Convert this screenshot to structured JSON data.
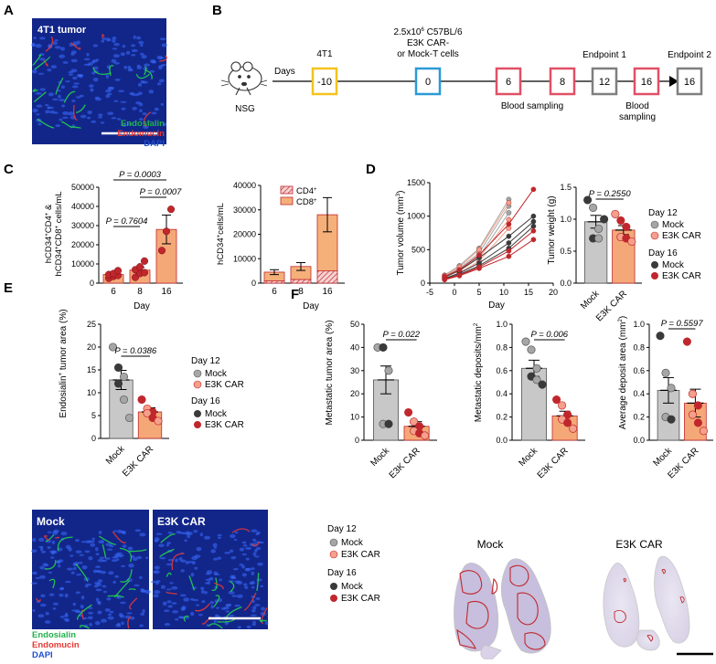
{
  "panel_labels": [
    "A",
    "B",
    "C",
    "D",
    "E",
    "F"
  ],
  "colors": {
    "mock_d12": "#a6a6a6",
    "e3k_d12": "#f4a08a",
    "mock_d16": "#3a3a3a",
    "e3k_d16": "#c0272d",
    "bar_mock": "#c8c8c8",
    "bar_e3k": "#f5a877",
    "bar_mock_line": "#555555",
    "bar_e3k_line": "#c0272d",
    "cd4_fill": "#f7d3d3",
    "cd4_hatch": "#c0272d",
    "cd8_fill": "#f5b07a",
    "box_neg10": "#f4c31e",
    "box_0": "#2b9ad4",
    "box_blood": "#e05066",
    "box_end": "#7f7f7f",
    "endosialin": "#22b14c",
    "endomucin": "#e53935",
    "dapi": "#1f4fd1"
  },
  "a": {
    "title": "4T1 tumor",
    "legend": [
      "Endosialin",
      "Endomucin",
      "DAPI"
    ]
  },
  "b": {
    "mouse_label": "NSG",
    "days_label": "Days",
    "cells_line1": "2.5x10",
    "cells_sup": "6",
    "cells_line1b": " C57BL/6",
    "cells_line2": "E3K CAR-",
    "cells_line3": "or Mock-T cells",
    "tumor_label": "4T1",
    "days": [
      "-10",
      "0",
      "6",
      "8",
      "12",
      "16",
      "16"
    ],
    "blood_sampling_1": "Blood sampling",
    "blood_sampling_2a": "Blood",
    "blood_sampling_2b": "sampling",
    "endpoint1": "Endpoint 1",
    "endpoint2": "Endpoint 2"
  },
  "c1": {
    "ylabel_1": "hCD34",
    "ylabel_2": "CD4",
    "ylabel_3": " &",
    "ylabel_4": "hCD34",
    "ylabel_5": "CD8",
    "ylabel_6": " cells/mL",
    "sup_plus": "+",
    "xlabel": "Day",
    "yticks": [
      "0",
      "10000",
      "20000",
      "30000",
      "40000",
      "50000"
    ],
    "p_values": [
      "P = 0.0003",
      "P = 0.0007",
      "P = 0.7604"
    ]
  },
  "c2": {
    "ylabel_1": "hCD34",
    "ylabel_2": "cells/mL",
    "sup_plus": "+",
    "xlabel": "Day",
    "yticks": [
      "0",
      "10000",
      "20000",
      "30000",
      "40000"
    ],
    "legend_cd4": "CD4",
    "legend_cd8": "CD8"
  },
  "d1": {
    "ylabel_1": "Tumor volume (mm",
    "ylabel_sup": "3",
    "ylabel_2": ")",
    "xlabel": "Day",
    "yticks": [
      "0",
      "500",
      "1000",
      "1500"
    ],
    "xticks": [
      "-5",
      "0",
      "5",
      "10",
      "15",
      "20"
    ]
  },
  "d2": {
    "ylabel": "Tumor weight (g)",
    "yticks": [
      "0.0",
      "0.5",
      "1.0",
      "1.5"
    ],
    "p_value": "P = 0.2550",
    "categories": [
      "Mock",
      "E3K CAR"
    ]
  },
  "legend": {
    "day12": "Day 12",
    "day16": "Day 16",
    "mock": "Mock",
    "e3k": "E3K CAR"
  },
  "e": {
    "ylabel_1": "Endosialin",
    "ylabel_sup": "+",
    "ylabel_2": " tumor area (%)",
    "yticks": [
      "0",
      "5",
      "10",
      "15",
      "20",
      "25"
    ],
    "p_value": "P = 0.0386",
    "categories": [
      "Mock",
      "E3K CAR"
    ],
    "img_labels": [
      "Mock",
      "E3K CAR"
    ],
    "legend": [
      "Endosialin",
      "Endomucin",
      "DAPI"
    ]
  },
  "f1": {
    "ylabel": "Metastatic tumor area (%)",
    "yticks": [
      "0",
      "10",
      "20",
      "30",
      "40",
      "50"
    ],
    "p_value": "P = 0.022",
    "categories": [
      "Mock",
      "E3K CAR"
    ]
  },
  "f2": {
    "ylabel_1": "Metastatic deposits/mm",
    "ylabel_sup": "2",
    "yticks": [
      "0.0",
      "0.2",
      "0.4",
      "0.6",
      "0.8",
      "1.0"
    ],
    "p_value": "P = 0.006",
    "categories": [
      "Mock",
      "E3K CAR"
    ]
  },
  "f3": {
    "ylabel_1": "Average deposit area (mm",
    "ylabel_sup": "2",
    "ylabel_2": ")",
    "yticks": [
      "0.0",
      "0.2",
      "0.4",
      "0.6",
      "0.8",
      "1.0"
    ],
    "p_value": "P = 0.5597",
    "categories": [
      "Mock",
      "E3K CAR"
    ]
  },
  "f_lungs": {
    "labels": [
      "Mock",
      "E3K CAR"
    ]
  },
  "chart_data": [
    {
      "id": "C-left",
      "type": "bar",
      "categories": [
        "6",
        "8",
        "16"
      ],
      "values": [
        4500,
        6800,
        28000
      ],
      "errors": [
        800,
        1500,
        7500
      ],
      "points": [
        [
          2500,
          3500,
          4000,
          4500,
          5000,
          6500
        ],
        [
          3000,
          5000,
          5500,
          7000,
          8500,
          11500
        ],
        [
          17000,
          27000,
          38500
        ]
      ],
      "ylim": [
        0,
        50000
      ],
      "xlabel": "Day",
      "p_values": [
        {
          "from": "6",
          "to": "16",
          "p": "P = 0.0003"
        },
        {
          "from": "8",
          "to": "16",
          "p": "P = 0.0007"
        },
        {
          "from": "6",
          "to": "8",
          "p": "P = 0.7604"
        }
      ]
    },
    {
      "id": "C-right",
      "type": "bar",
      "categories": [
        "6",
        "8",
        "16"
      ],
      "series": [
        {
          "name": "CD4",
          "values": [
            900,
            1500,
            5000
          ]
        },
        {
          "name": "CD8",
          "values": [
            3600,
            5300,
            23000
          ]
        }
      ],
      "errors_total": [
        1000,
        1600,
        7000
      ],
      "ylim": [
        0,
        40000
      ],
      "xlabel": "Day"
    },
    {
      "id": "D-left",
      "type": "line",
      "xlim": [
        -5,
        20
      ],
      "ylim": [
        0,
        1500
      ],
      "xlabel": "Day",
      "series": [
        {
          "group": "Mock Day 12",
          "x": [
            -2,
            1,
            5,
            11
          ],
          "y": [
            120,
            260,
            520,
            1250
          ]
        },
        {
          "group": "Mock Day 12",
          "x": [
            -2,
            1,
            5,
            11
          ],
          "y": [
            100,
            220,
            450,
            1150
          ]
        },
        {
          "group": "Mock Day 12",
          "x": [
            -2,
            1,
            5,
            11
          ],
          "y": [
            80,
            200,
            400,
            1050
          ]
        },
        {
          "group": "E3K CAR Day 12",
          "x": [
            -2,
            1,
            5,
            11
          ],
          "y": [
            110,
            240,
            500,
            1200
          ]
        },
        {
          "group": "E3K CAR Day 12",
          "x": [
            -2,
            1,
            5,
            11
          ],
          "y": [
            90,
            180,
            380,
            950
          ]
        },
        {
          "group": "E3K CAR Day 12",
          "x": [
            -2,
            1,
            5,
            11
          ],
          "y": [
            70,
            150,
            330,
            820
          ]
        },
        {
          "group": "Mock Day 16",
          "x": [
            -2,
            1,
            5,
            11,
            16
          ],
          "y": [
            90,
            190,
            380,
            700,
            1000
          ]
        },
        {
          "group": "Mock Day 16",
          "x": [
            -2,
            1,
            5,
            11,
            16
          ],
          "y": [
            70,
            150,
            300,
            600,
            920
          ]
        },
        {
          "group": "Mock Day 16",
          "x": [
            -2,
            1,
            5,
            11,
            16
          ],
          "y": [
            60,
            130,
            260,
            520,
            850
          ]
        },
        {
          "group": "E3K CAR Day 16",
          "x": [
            -2,
            1,
            5,
            11,
            16
          ],
          "y": [
            100,
            200,
            420,
            880,
            1400
          ]
        },
        {
          "group": "E3K CAR Day 16",
          "x": [
            -2,
            1,
            5,
            11,
            16
          ],
          "y": [
            60,
            120,
            240,
            480,
            780
          ]
        },
        {
          "group": "E3K CAR Day 16",
          "x": [
            -2,
            1,
            5,
            11,
            16
          ],
          "y": [
            50,
            110,
            220,
            400,
            650
          ]
        }
      ]
    },
    {
      "id": "D-right",
      "type": "bar",
      "categories": [
        "Mock",
        "E3K CAR"
      ],
      "values": [
        0.96,
        0.83
      ],
      "errors": [
        0.1,
        0.07
      ],
      "points": [
        [
          1.3,
          1.18,
          0.85,
          0.7,
          0.7,
          1.0
        ],
        [
          1.08,
          0.98,
          0.88,
          0.72,
          0.7,
          0.65
        ]
      ],
      "point_groups": [
        [
          "d16",
          "d12",
          "d12",
          "d16",
          "d12",
          "d16"
        ],
        [
          "d12",
          "d16",
          "d16",
          "d12",
          "d16",
          "d12"
        ]
      ],
      "ylim": [
        0,
        1.5
      ],
      "p_value": "P = 0.2550"
    },
    {
      "id": "E",
      "type": "bar",
      "categories": [
        "Mock",
        "E3K CAR"
      ],
      "values": [
        12.8,
        5.8
      ],
      "errors": [
        2.1,
        0.9
      ],
      "points": [
        [
          20.0,
          15.5,
          13.5,
          12.0,
          8.5,
          4.5
        ],
        [
          8.5,
          6.5,
          5.8,
          5.5,
          4.5,
          3.8
        ]
      ],
      "point_groups": [
        [
          "d12",
          "d16",
          "d12",
          "d16",
          "d12",
          "d12"
        ],
        [
          "d16",
          "d12",
          "d16",
          "d12",
          "d16",
          "d12"
        ]
      ],
      "ylim": [
        0,
        25
      ],
      "p_value": "P = 0.0386"
    },
    {
      "id": "F-left",
      "type": "bar",
      "categories": [
        "Mock",
        "E3K CAR"
      ],
      "values": [
        26,
        6
      ],
      "errors": [
        6,
        2
      ],
      "points": [
        [
          40,
          40,
          30,
          7,
          7
        ],
        [
          12,
          8,
          6,
          4,
          3,
          2
        ]
      ],
      "point_groups": [
        [
          "d12",
          "d16",
          "d12",
          "d12",
          "d16"
        ],
        [
          "d16",
          "d12",
          "d16",
          "d12",
          "d16",
          "d12"
        ]
      ],
      "ylim": [
        0,
        50
      ],
      "p_value": "P = 0.022"
    },
    {
      "id": "F-middle",
      "type": "bar",
      "categories": [
        "Mock",
        "E3K CAR"
      ],
      "values": [
        0.62,
        0.21
      ],
      "errors": [
        0.07,
        0.04
      ],
      "points": [
        [
          0.85,
          0.78,
          0.62,
          0.55,
          0.52,
          0.48
        ],
        [
          0.35,
          0.3,
          0.22,
          0.18,
          0.15,
          0.1
        ]
      ],
      "point_groups": [
        [
          "d12",
          "d12",
          "d12",
          "d16",
          "d12",
          "d16"
        ],
        [
          "d16",
          "d12",
          "d16",
          "d12",
          "d16",
          "d12"
        ]
      ],
      "ylim": [
        0,
        1.0
      ],
      "p_value": "P = 0.006"
    },
    {
      "id": "F-right",
      "type": "bar",
      "categories": [
        "Mock",
        "E3K CAR"
      ],
      "values": [
        0.43,
        0.32
      ],
      "errors": [
        0.11,
        0.12
      ],
      "points": [
        [
          0.9,
          0.58,
          0.45,
          0.2,
          0.18
        ],
        [
          0.85,
          0.4,
          0.3,
          0.22,
          0.15,
          0.08
        ]
      ],
      "point_groups": [
        [
          "d16",
          "d12",
          "d12",
          "d12",
          "d16"
        ],
        [
          "d16",
          "d12",
          "d16",
          "d12",
          "d16",
          "d12"
        ]
      ],
      "ylim": [
        0,
        1.0
      ],
      "p_value": "P = 0.5597"
    }
  ]
}
